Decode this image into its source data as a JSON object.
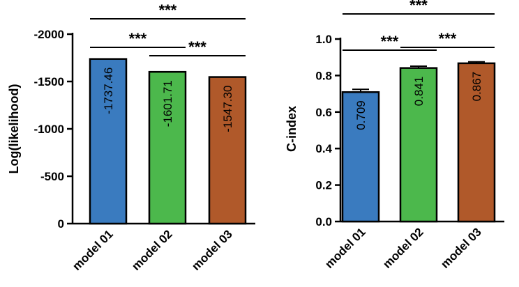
{
  "colors": {
    "model01": "#3a7bbf",
    "model02": "#4cb84c",
    "model03": "#b0592a",
    "stroke": "#000000"
  },
  "chart_data": [
    {
      "type": "bar",
      "categories": [
        "model 01",
        "model 02",
        "model 03"
      ],
      "values": [
        -1737.46,
        -1601.71,
        -1547.3
      ],
      "value_labels": [
        "-1737.46",
        "-1601.71",
        "-1547.30"
      ],
      "title": "",
      "xlabel": "",
      "ylabel": "Log(likelihood)",
      "ylim": [
        0,
        -2000
      ],
      "yticks": [
        0,
        -500,
        -1000,
        -1500,
        -2000
      ],
      "ytick_labels": [
        "0",
        "-500",
        "-1000",
        "-1500",
        "-2000"
      ],
      "error": [
        0,
        0,
        0
      ],
      "significance": [
        {
          "from": 0,
          "to": 2,
          "label": "***"
        },
        {
          "from": 0,
          "to": 1,
          "label": "***"
        },
        {
          "from": 1,
          "to": 2,
          "label": "***"
        }
      ]
    },
    {
      "type": "bar",
      "categories": [
        "model 01",
        "model 02",
        "model 03"
      ],
      "values": [
        0.709,
        0.841,
        0.867
      ],
      "value_labels": [
        "0.709",
        "0.841",
        "0.867"
      ],
      "title": "",
      "xlabel": "",
      "ylabel": "C-index",
      "ylim": [
        0,
        1.0
      ],
      "yticks": [
        0,
        0.2,
        0.4,
        0.6,
        0.8,
        1.0
      ],
      "ytick_labels": [
        "0.0",
        "0.2",
        "0.4",
        "0.6",
        "0.8",
        "1.0"
      ],
      "error": [
        0.015,
        0.01,
        0.008
      ],
      "significance": [
        {
          "from": 0,
          "to": 2,
          "label": "***"
        },
        {
          "from": 0,
          "to": 1,
          "label": "***"
        },
        {
          "from": 1,
          "to": 2,
          "label": "***"
        }
      ]
    }
  ]
}
